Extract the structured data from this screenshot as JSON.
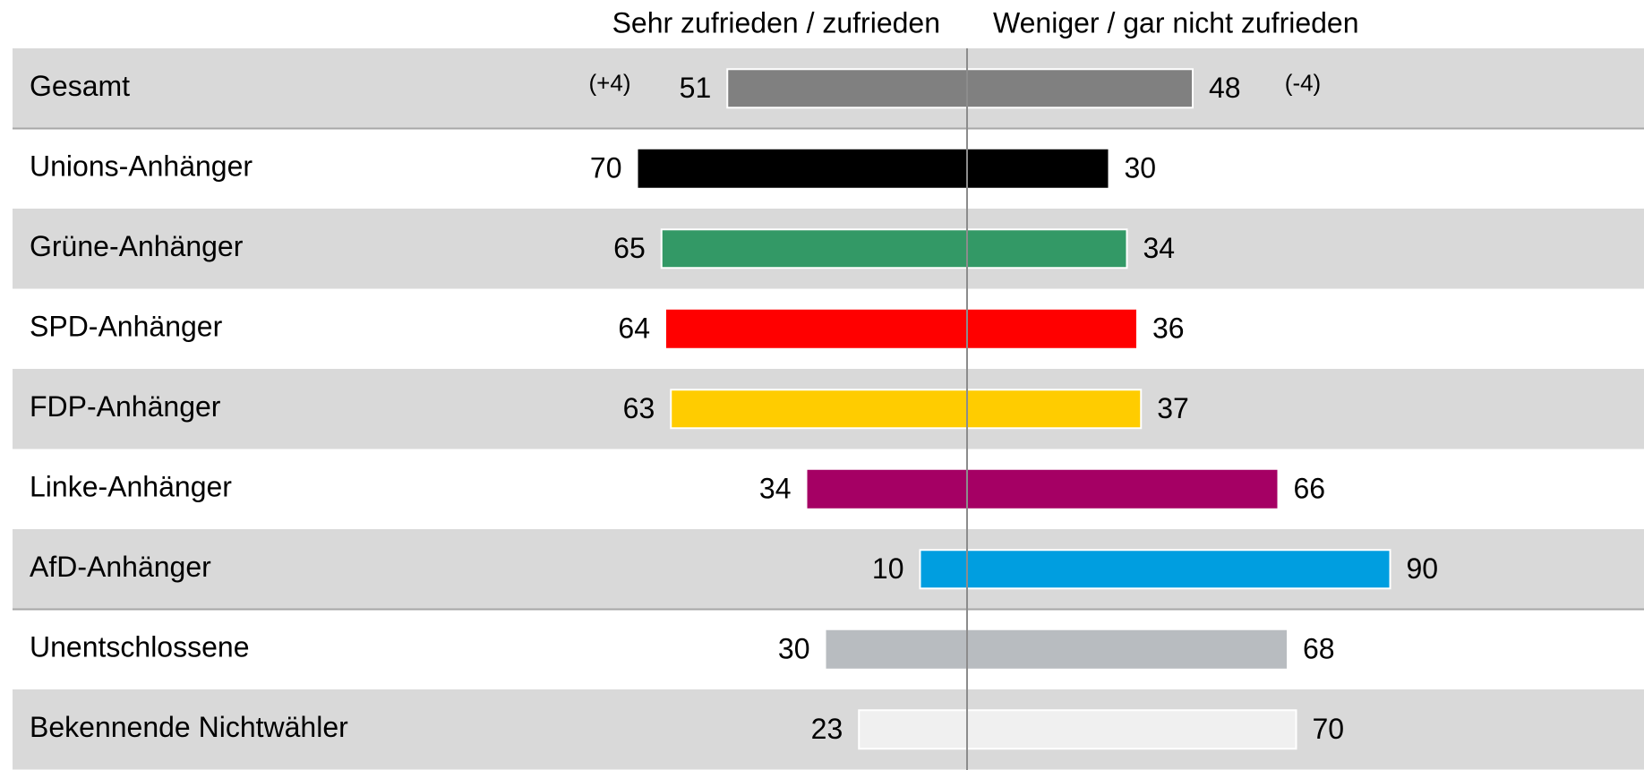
{
  "chart_data": {
    "type": "diverging-bar",
    "categories": [
      "Gesamt",
      "Unions-Anhänger",
      "Grüne-Anhänger",
      "SPD-Anhänger",
      "FDP-Anhänger",
      "Linke-Anhänger",
      "AfD-Anhänger",
      "Unentschlossene",
      "Bekennende Nichtwähler"
    ],
    "colors": [
      "#808080",
      "#000000",
      "#339966",
      "#ff0000",
      "#ffcc00",
      "#a50064",
      "#009ee0",
      "#b8bcc0",
      "#f0f0f0"
    ],
    "series": [
      {
        "name": "Sehr zufrieden / zufrieden",
        "values": [
          51,
          70,
          65,
          64,
          63,
          34,
          10,
          30,
          23
        ]
      },
      {
        "name": "Weniger / gar nicht zufrieden",
        "values": [
          48,
          30,
          34,
          36,
          37,
          66,
          90,
          68,
          70
        ]
      }
    ],
    "annotations": [
      "(+4)",
      "(-4)"
    ]
  }
}
